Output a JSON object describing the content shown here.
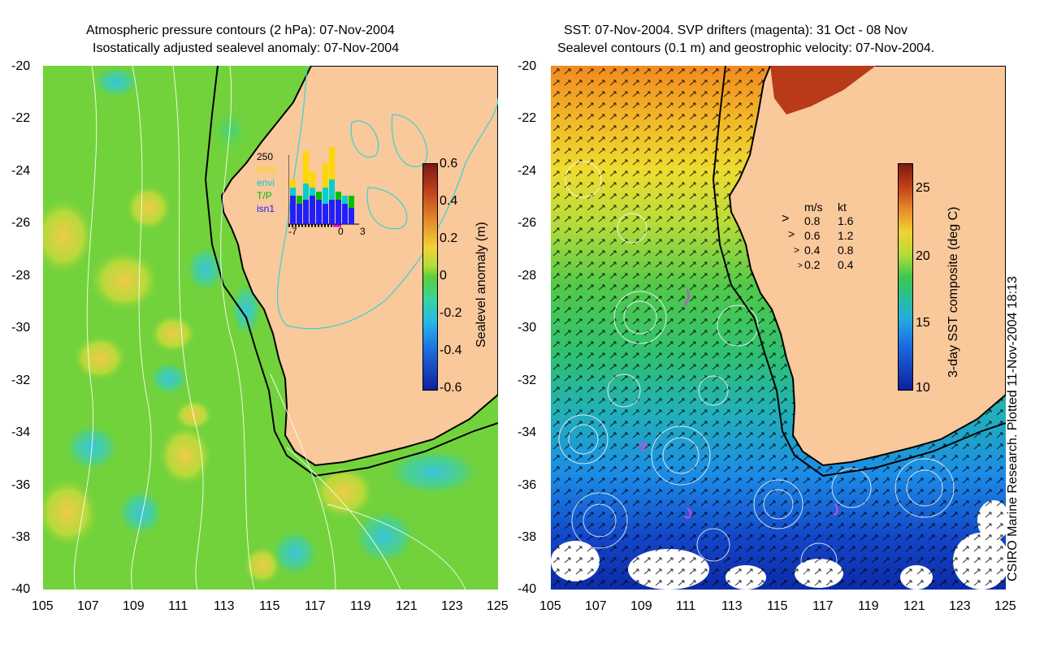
{
  "left_panel": {
    "title_line1": "Atmospheric pressure contours (2 hPa): 07-Nov-2004",
    "title_line2": "Isostatically adjusted sealevel anomaly: 07-Nov-2004",
    "colorbar": {
      "label": "Sealevel anomaly (m)",
      "ticks": [
        "0.6",
        "0.4",
        "0.2",
        "0",
        "-0.2",
        "-0.4",
        "-0.6"
      ]
    },
    "inset": {
      "y_max_label": "250",
      "legend": [
        "ERS",
        "envi",
        "T/P",
        "isn1"
      ],
      "legend_colors": [
        "#ffd700",
        "#00d0d0",
        "#00c000",
        "#2020ff"
      ],
      "x_labels": [
        "-7",
        "0",
        "3"
      ]
    }
  },
  "right_panel": {
    "title_line1": "SST: 07-Nov-2004. SVP drifters (magenta): 31 Oct - 08 Nov",
    "title_line2": "Sealevel contours (0.1 m) and geostrophic velocity: 07-Nov-2004.",
    "colorbar": {
      "label": "3-day SST composite (deg C)",
      "ticks": [
        "25",
        "20",
        "15",
        "10"
      ]
    },
    "velocity_legend": {
      "header_ms": "m/s",
      "header_kt": "kt",
      "rows": [
        {
          "ms": "0.8",
          "kt": "1.6"
        },
        {
          "ms": "0.6",
          "kt": "1.2"
        },
        {
          "ms": "0.4",
          "kt": "0.8"
        },
        {
          "ms": "0.2",
          "kt": "0.4"
        }
      ]
    }
  },
  "axes": {
    "lat_labels": [
      "-20",
      "-22",
      "-24",
      "-26",
      "-28",
      "-30",
      "-32",
      "-34",
      "-36",
      "-38",
      "-40"
    ],
    "lon_labels": [
      "105",
      "107",
      "109",
      "111",
      "113",
      "115",
      "117",
      "119",
      "121",
      "123",
      "125"
    ]
  },
  "credit": "CSIRO Marine Research. Plotted 11-Nov-2004 18:13"
}
